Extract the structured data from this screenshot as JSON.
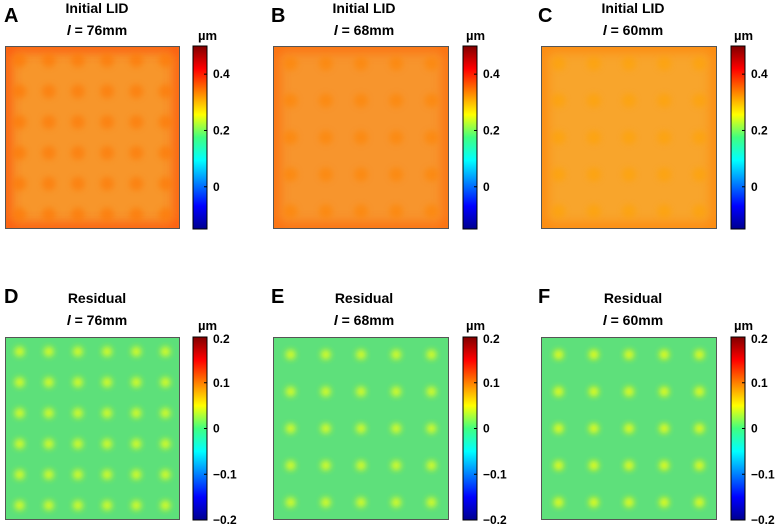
{
  "chart_data": [
    {
      "type": "heatmap",
      "panel": "A",
      "title": [
        "Initial LID",
        "l = 76mm"
      ],
      "colorbar": {
        "unit": "µm",
        "range": [
          -0.15,
          0.5
        ],
        "ticks": [
          0,
          0.2,
          0.4
        ],
        "tick_labels": [
          "0",
          "0.2",
          "0.4"
        ]
      },
      "field": {
        "base": 0.36,
        "edge": 0.38,
        "grid": 6,
        "dot": -0.015,
        "bg": "#f7962b"
      }
    },
    {
      "type": "heatmap",
      "panel": "B",
      "title": [
        "Initial LID",
        "l = 68mm"
      ],
      "colorbar": {
        "unit": "µm",
        "range": [
          -0.15,
          0.5
        ],
        "ticks": [
          0,
          0.2,
          0.4
        ],
        "tick_labels": [
          "0",
          "0.2",
          "0.4"
        ]
      },
      "field": {
        "base": 0.35,
        "edge": 0.36,
        "grid": 5,
        "dot": -0.015,
        "bg": "#f7952d"
      }
    },
    {
      "type": "heatmap",
      "panel": "C",
      "title": [
        "Initial LID",
        "l = 60mm"
      ],
      "colorbar": {
        "unit": "µm",
        "range": [
          -0.15,
          0.5
        ],
        "ticks": [
          0,
          0.2,
          0.4
        ],
        "tick_labels": [
          "0",
          "0.2",
          "0.4"
        ]
      },
      "field": {
        "base": 0.33,
        "edge": 0.34,
        "grid": 5,
        "dot": -0.015,
        "bg": "#f8a52c"
      }
    },
    {
      "type": "heatmap",
      "panel": "D",
      "title": [
        "Residual",
        "l = 76mm"
      ],
      "colorbar": {
        "unit": "µm",
        "range": [
          -0.2,
          0.2
        ],
        "ticks": [
          0.2,
          0.1,
          0,
          -0.1,
          -0.2
        ],
        "tick_labels": [
          "0.2",
          "0.1",
          "0",
          "−0.1",
          "−0.2"
        ]
      },
      "field": {
        "base": 0.0,
        "grid": 6,
        "dot": 0.04,
        "bg": "#5de07a"
      }
    },
    {
      "type": "heatmap",
      "panel": "E",
      "title": [
        "Residual",
        "l = 68mm"
      ],
      "colorbar": {
        "unit": "µm",
        "range": [
          -0.2,
          0.2
        ],
        "ticks": [
          0.2,
          0.1,
          0,
          -0.1,
          -0.2
        ],
        "tick_labels": [
          "0.2",
          "0.1",
          "0",
          "−0.1",
          "−0.2"
        ]
      },
      "field": {
        "base": 0.0,
        "grid": 5,
        "dot": 0.04,
        "bg": "#5ee07b"
      }
    },
    {
      "type": "heatmap",
      "panel": "F",
      "title": [
        "Residual",
        "l = 60mm"
      ],
      "colorbar": {
        "unit": "µm",
        "range": [
          -0.2,
          0.2
        ],
        "ticks": [
          0.2,
          0.1,
          0,
          -0.1,
          -0.2
        ],
        "tick_labels": [
          "0.2",
          "0.1",
          "0",
          "−0.1",
          "−0.2"
        ]
      },
      "field": {
        "base": 0.0,
        "grid": 5,
        "dot": 0.045,
        "bg": "#5ee07b"
      }
    }
  ]
}
